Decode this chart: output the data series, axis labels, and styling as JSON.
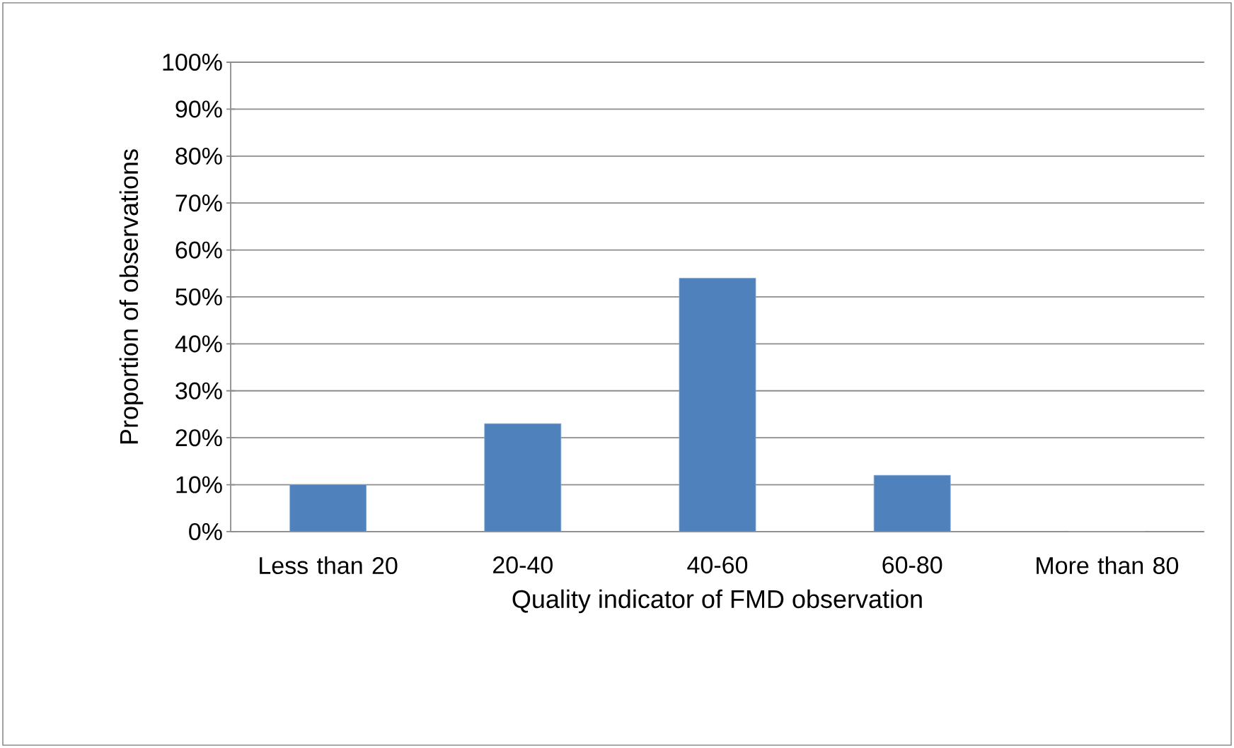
{
  "chart_data": {
    "type": "bar",
    "xlabel": "Quality indicator of FMD observation",
    "ylabel": "Proportion of observations",
    "categories": [
      "Less than 20",
      "20-40",
      "40-60",
      "60-80",
      "More than 80"
    ],
    "values": [
      10,
      23,
      54,
      12,
      0
    ],
    "color": "#4f81bd",
    "ylim": [
      0,
      100
    ],
    "yticks": [
      {
        "value": 0,
        "label": "0%"
      },
      {
        "value": 10,
        "label": "10%"
      },
      {
        "value": 20,
        "label": "20%"
      },
      {
        "value": 30,
        "label": "30%"
      },
      {
        "value": 40,
        "label": "40%"
      },
      {
        "value": 50,
        "label": "50%"
      },
      {
        "value": 60,
        "label": "60%"
      },
      {
        "value": 70,
        "label": "70%"
      },
      {
        "value": 80,
        "label": "80%"
      },
      {
        "value": 90,
        "label": "90%"
      },
      {
        "value": 100,
        "label": "100%"
      }
    ],
    "grid": "y"
  }
}
